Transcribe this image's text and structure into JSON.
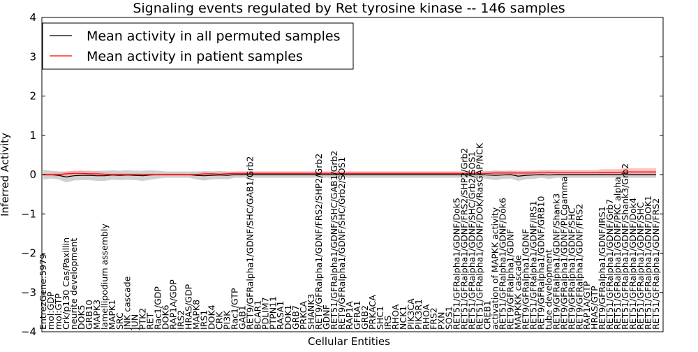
{
  "chart_data": {
    "type": "line",
    "title": "Signaling events regulated by Ret tyrosine kinase -- 146 samples",
    "xlabel": "Cellular Entities",
    "ylabel": "Inferred Activity",
    "ylim": [
      -4,
      4
    ],
    "yticks": [
      -4,
      -3,
      -2,
      -1,
      0,
      1,
      2,
      3,
      4
    ],
    "ytick_labels": [
      "−4",
      "−3",
      "−2",
      "−1",
      "0",
      "1",
      "2",
      "3",
      "4"
    ],
    "grid": false,
    "legend_position": "top-left",
    "categories": [
      "EntrezGene:5979",
      "mol:GDP",
      "mol:GTP",
      "Crk/p130 Cas/Paxillin",
      "neurite development",
      "DOK5",
      "GRB10",
      "MAPK3",
      "lamellipodium assembly",
      "MAPK1",
      "SRC",
      "JNK cascade",
      "JUN",
      "PTK2",
      "RET",
      "Rac1/GDP",
      "DOK6",
      "RAP1A/GDP",
      "IRS2",
      "HRAS/GDP",
      "MAPK8",
      "IRS1",
      "DOK4",
      "CRK",
      "PI3K",
      "Rac1/GTP",
      "GAB1",
      "RET9/GFRalpha1/GDNF/SHC/GAB1/Grb2",
      "BCAR1",
      "PDLIM7",
      "PTPN11",
      "RASA1",
      "DOK1",
      "GRB7",
      "PRKCA",
      "SHANK3",
      "RET9/GFRalpha1/GDNF/FRS2/SHP2/Grb2",
      "GDNF",
      "RET51/GFRalpha1/GDNF/SHC/GAB1/Grb2",
      "RET9/GFRalpha1/GDNF/SHC/Grb2/SOS1",
      "RAP1A",
      "GFRA1",
      "GRB2",
      "PRKACA",
      "SHC1",
      "IRS",
      "RHOA",
      "NCK1",
      "PIK3CA",
      "PIK3R1",
      "RHOA",
      "FRS2",
      "PXN",
      "SOS1",
      "RET51/GFRalpha1/GDNF/Dok5",
      "RET51/GFRalpha1/GDNF/FRS2/SHP2/Grb2",
      "RET51/GFRalpha1/GDNF/SHC/Grb2/SOS1",
      "RET51/GFRalpha1/GDNF/DOK/RasGAP/NCK",
      "CREB1",
      "activation of MAPKK activity",
      "RET51/GFRalpha1/GDNF/Dok6",
      "RET9/GFRalpha1/GDNF",
      "MAPKKK cascade",
      "RET9/GFRalpha1/GDNF",
      "RET51/GFRalpha1/GDNF/IRS1",
      "RET9/GFRalpha1/GDNF/GRB10",
      "tube development",
      "RET9/GFRalpha1/GDNF/Shank3",
      "RET9/GFRalpha1/GDNF/PLCgamma",
      "RET9/GFRalpha1/GDNF/SHC",
      "RET9/GFRalpha1/GDNF/FRS2",
      "RAP1A/GTP",
      "HRAS/GTP",
      "RET9/GFRalpha1/GDNF/IRS1",
      "RET51/GFRalpha1/GDNF/Grb7",
      "RET51/GFRalpha1/GDNF/PKC alpha",
      "RET51/GFRalpha1/GDNF/Shank3/Grb2",
      "RET51/GFRalpha1/GDNF/Dok4",
      "RET51/GFRalpha1/GDNF/SHC",
      "RET51/GFRalpha1/GDNF/DOK1",
      "RET51/GFRalpha1/GDNF/FRS2"
    ],
    "series": [
      {
        "name": "Mean activity in all permuted samples",
        "color": "#000000",
        "band_color": "#b0b0b0",
        "values": [
          0.0,
          0.0,
          -0.02,
          -0.06,
          -0.03,
          -0.02,
          -0.02,
          -0.03,
          -0.03,
          -0.01,
          -0.02,
          -0.01,
          -0.02,
          -0.03,
          -0.01,
          0.0,
          0.0,
          0.0,
          0.0,
          0.0,
          -0.02,
          -0.03,
          -0.02,
          -0.01,
          -0.02,
          0.0,
          0.0,
          0.0,
          0.0,
          0.0,
          0.0,
          0.0,
          0.0,
          0.0,
          0.0,
          0.0,
          0.0,
          0.0,
          0.0,
          0.0,
          0.0,
          0.0,
          0.0,
          0.0,
          0.0,
          0.0,
          0.0,
          0.0,
          0.0,
          0.0,
          0.0,
          0.0,
          0.0,
          0.0,
          0.0,
          0.0,
          0.0,
          0.0,
          -0.01,
          -0.02,
          -0.01,
          0.0,
          -0.04,
          -0.02,
          -0.01,
          0.0,
          -0.01,
          0.0,
          0.0,
          0.0,
          0.0,
          0.0,
          0.0,
          0.0,
          0.0,
          0.0,
          0.0,
          0.0,
          0.0,
          0.0,
          0.0
        ],
        "band": [
          0.12,
          0.1,
          0.1,
          0.14,
          0.12,
          0.12,
          0.12,
          0.13,
          0.13,
          0.12,
          0.12,
          0.12,
          0.12,
          0.13,
          0.12,
          0.1,
          0.08,
          0.08,
          0.08,
          0.08,
          0.1,
          0.12,
          0.1,
          0.1,
          0.1,
          0.08,
          0.08,
          0.08,
          0.08,
          0.08,
          0.08,
          0.08,
          0.08,
          0.08,
          0.08,
          0.08,
          0.08,
          0.08,
          0.08,
          0.08,
          0.08,
          0.08,
          0.08,
          0.08,
          0.08,
          0.08,
          0.08,
          0.08,
          0.08,
          0.08,
          0.08,
          0.08,
          0.08,
          0.08,
          0.08,
          0.08,
          0.08,
          0.08,
          0.1,
          0.12,
          0.1,
          0.1,
          0.12,
          0.1,
          0.1,
          0.08,
          0.1,
          0.08,
          0.08,
          0.08,
          0.08,
          0.08,
          0.08,
          0.08,
          0.08,
          0.08,
          0.08,
          0.08,
          0.08,
          0.08,
          0.08
        ]
      },
      {
        "name": "Mean activity in patient samples",
        "color": "#ff0000",
        "band_color": "#ff9090",
        "values": [
          0.0,
          0.0,
          0.0,
          0.02,
          0.03,
          0.03,
          0.02,
          0.02,
          0.01,
          0.0,
          0.0,
          0.0,
          0.0,
          0.0,
          0.0,
          0.0,
          0.0,
          0.0,
          0.0,
          0.0,
          0.0,
          0.02,
          0.02,
          0.01,
          0.02,
          0.03,
          0.03,
          0.03,
          0.03,
          0.03,
          0.03,
          0.03,
          0.03,
          0.03,
          0.03,
          0.03,
          0.03,
          0.03,
          0.03,
          0.03,
          0.03,
          0.03,
          0.03,
          0.03,
          0.03,
          0.03,
          0.03,
          0.03,
          0.03,
          0.03,
          0.03,
          0.03,
          0.03,
          0.03,
          0.03,
          0.03,
          0.03,
          0.03,
          0.03,
          0.04,
          0.04,
          0.04,
          0.04,
          0.04,
          0.04,
          0.05,
          0.05,
          0.05,
          0.05,
          0.05,
          0.05,
          0.05,
          0.05,
          0.06,
          0.06,
          0.06,
          0.07,
          0.07,
          0.07,
          0.07,
          0.07
        ],
        "band": [
          0.03,
          0.04,
          0.05,
          0.06,
          0.07,
          0.07,
          0.06,
          0.06,
          0.05,
          0.04,
          0.04,
          0.03,
          0.03,
          0.03,
          0.03,
          0.03,
          0.03,
          0.03,
          0.03,
          0.03,
          0.03,
          0.04,
          0.04,
          0.04,
          0.04,
          0.05,
          0.05,
          0.05,
          0.05,
          0.05,
          0.05,
          0.05,
          0.05,
          0.05,
          0.05,
          0.05,
          0.05,
          0.05,
          0.05,
          0.05,
          0.05,
          0.05,
          0.05,
          0.05,
          0.05,
          0.05,
          0.05,
          0.05,
          0.05,
          0.05,
          0.05,
          0.05,
          0.05,
          0.05,
          0.05,
          0.05,
          0.05,
          0.05,
          0.05,
          0.06,
          0.06,
          0.06,
          0.06,
          0.06,
          0.06,
          0.07,
          0.07,
          0.07,
          0.07,
          0.07,
          0.07,
          0.07,
          0.07,
          0.08,
          0.08,
          0.08,
          0.09,
          0.09,
          0.09,
          0.09,
          0.09
        ]
      }
    ]
  }
}
